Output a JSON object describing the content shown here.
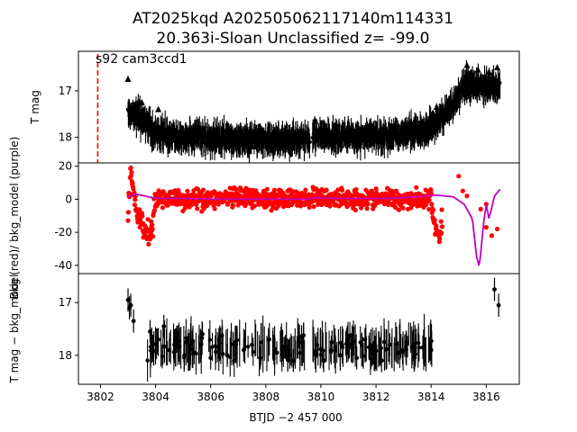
{
  "figure": {
    "title_line1": "AT2025kqd  A202505062117140m114331",
    "title_line2": "20.363i-Sloan Unclassified z= -99.0",
    "annotation": "s92 cam3ccd1",
    "xlabel": "BTJD −2 457 000",
    "colors": {
      "points": "#000000",
      "bkg": "#ff0000",
      "model": "#bf00bf",
      "marker_line": "#ff0000"
    }
  },
  "chart_data": [
    {
      "type": "scatter",
      "panel": "top",
      "ylabel": "T mag",
      "xlim": [
        3801.2,
        3817.2
      ],
      "ylim": [
        18.55,
        16.15
      ],
      "y_inverted": true,
      "xticks": [
        3802,
        3804,
        3806,
        3808,
        3810,
        3812,
        3814,
        3816
      ],
      "yticks": [
        17,
        18
      ],
      "vertical_line_x": 3801.9,
      "segments": [
        {
          "x": [
            3803.0,
            3803.3,
            3803.6,
            3803.9,
            3804.2,
            3804.6,
            3805.0,
            3805.5,
            3806.0,
            3806.5,
            3807.0,
            3807.5,
            3808.0,
            3808.5,
            3809.0,
            3809.6
          ],
          "y": [
            17.45,
            17.5,
            17.65,
            17.85,
            17.95,
            17.95,
            18.0,
            17.95,
            18.05,
            18.0,
            18.05,
            18.05,
            18.05,
            18.05,
            18.05,
            18.05
          ]
        },
        {
          "x": [
            3809.7,
            3810.2,
            3810.7,
            3811.2,
            3811.7,
            3812.2,
            3812.7,
            3813.2,
            3813.7,
            3814.1,
            3814.4,
            3814.7,
            3815.0,
            3815.3,
            3815.6,
            3815.9,
            3816.2,
            3816.5
          ],
          "y": [
            17.95,
            18.0,
            17.95,
            18.0,
            17.95,
            18.0,
            17.95,
            17.9,
            17.85,
            17.75,
            17.55,
            17.35,
            17.1,
            16.85,
            16.9,
            16.95,
            16.85,
            16.95
          ]
        }
      ]
    },
    {
      "type": "line",
      "panel": "middle",
      "ylabel": "Bkg (red)/ bkg_model (purple)",
      "ylim": [
        -45,
        22
      ],
      "yticks": [
        -40,
        -20,
        0,
        20
      ],
      "series": [
        {
          "role": "bkg",
          "x": [
            3803.0,
            3803.1,
            3803.2,
            3803.3,
            3803.45,
            3803.6,
            3803.75,
            3803.9,
            3804.0,
            3804.5,
            3805.0,
            3806.0,
            3807.0,
            3808.0,
            3809.0,
            3809.6,
            3809.7,
            3810.5,
            3811.5,
            3812.5,
            3813.5,
            3814.0,
            3814.1,
            3814.2,
            3814.3,
            3814.5,
            3815.0,
            3815.5,
            3816.0,
            3816.3
          ],
          "y": [
            -10,
            18,
            5,
            -8,
            -12,
            -20,
            -22,
            -15,
            0,
            1,
            0,
            0.5,
            0.5,
            0.5,
            0.5,
            0,
            1,
            0.5,
            0.5,
            0.5,
            0.5,
            0,
            -12,
            -20,
            -22,
            -5,
            14,
            0,
            -20,
            4
          ]
        },
        {
          "role": "model",
          "x": [
            3803.0,
            3803.3,
            3803.6,
            3803.9,
            3804.2,
            3805.0,
            3806.0,
            3807.0,
            3808.0,
            3809.0,
            3809.6,
            3809.7,
            3810.5,
            3811.5,
            3812.5,
            3813.5,
            3814.2,
            3814.8,
            3815.2,
            3815.5,
            3815.65,
            3815.75,
            3815.9,
            3816.0,
            3816.1,
            3816.3,
            3816.5
          ],
          "y": [
            1.5,
            3,
            2,
            1,
            0.5,
            0.5,
            0,
            0,
            0,
            0,
            0,
            1,
            0.5,
            0.5,
            0.5,
            1.5,
            2.5,
            1.5,
            -3,
            -12,
            -35,
            -41,
            -15,
            -3,
            -12,
            2,
            6
          ]
        }
      ]
    },
    {
      "type": "scatter",
      "panel": "bottom",
      "ylabel": "T mag − bkg_model",
      "ylim": [
        18.55,
        16.45
      ],
      "y_inverted": true,
      "yticks": [
        17,
        18
      ],
      "points": {
        "x": [
          3803.0,
          3803.05,
          3803.1,
          3803.2,
          3803.8,
          3803.9,
          3804.1,
          3804.3,
          3804.5,
          3804.8,
          3805.1,
          3805.4,
          3805.7,
          3806.0,
          3806.3,
          3806.6,
          3806.9,
          3807.2,
          3807.5,
          3807.8,
          3808.1,
          3808.4,
          3808.7,
          3809.0,
          3809.3,
          3809.8,
          3810.1,
          3810.4,
          3810.7,
          3811.0,
          3811.3,
          3811.6,
          3811.9,
          3812.2,
          3812.5,
          3812.8,
          3813.1,
          3813.4,
          3813.7,
          3814.0,
          3816.3,
          3816.45
        ],
        "y": [
          16.95,
          17.1,
          17.05,
          17.35,
          17.55,
          17.9,
          17.7,
          17.45,
          17.9,
          17.65,
          17.75,
          17.95,
          17.6,
          18.05,
          17.7,
          18.0,
          17.75,
          17.9,
          17.8,
          18.05,
          17.7,
          17.95,
          17.85,
          18.1,
          17.65,
          17.95,
          18.1,
          17.75,
          18.0,
          17.85,
          18.05,
          17.7,
          17.95,
          18.1,
          17.8,
          17.95,
          17.75,
          18.05,
          17.85,
          17.9,
          16.75,
          17.05
        ]
      }
    }
  ]
}
